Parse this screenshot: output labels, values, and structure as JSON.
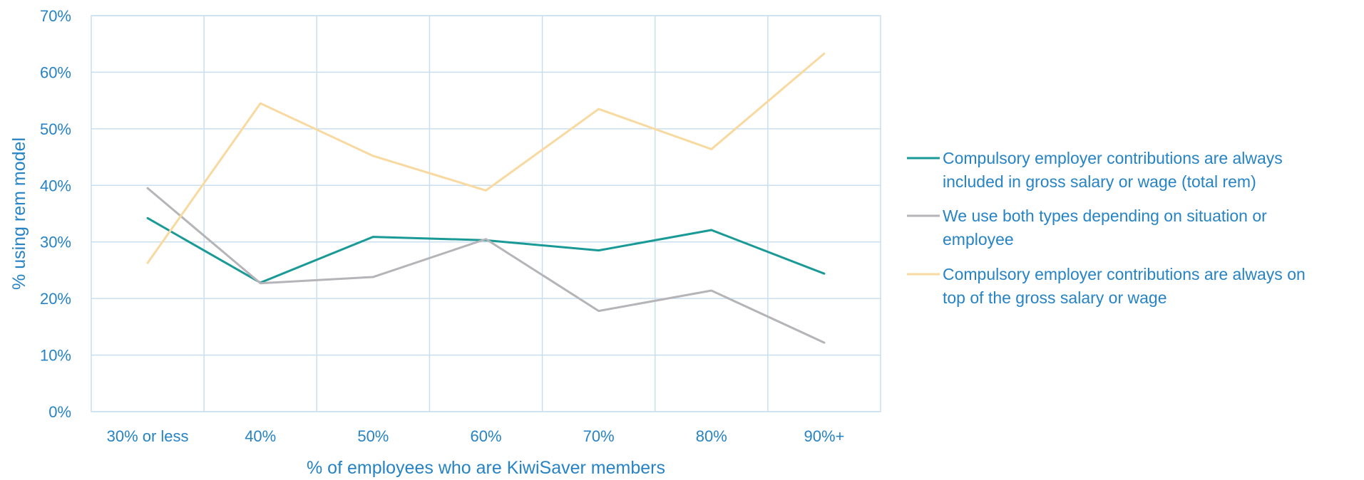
{
  "chart_data": {
    "type": "line",
    "title": "",
    "xlabel": "% of employees who are KiwiSaver members",
    "ylabel": "% using rem model",
    "categories": [
      "30% or less",
      "40%",
      "50%",
      "60%",
      "70%",
      "80%",
      "90%+"
    ],
    "ylim": [
      0,
      70
    ],
    "yticks": [
      0,
      10,
      20,
      30,
      40,
      50,
      60,
      70
    ],
    "ytick_labels": [
      "0%",
      "10%",
      "20%",
      "30%",
      "40%",
      "50%",
      "60%",
      "70%"
    ],
    "grid": true,
    "legend_position": "right",
    "series": [
      {
        "name": "Compulsory employer contributions are always included in gross salary or wage (total rem)",
        "legend_lines": [
          "Compulsory employer contributions are always",
          "included in gross salary or wage (total rem)"
        ],
        "color": "#1a9a96",
        "values": [
          34.2,
          22.8,
          30.9,
          30.3,
          28.5,
          32.1,
          24.4
        ]
      },
      {
        "name": "We use both types depending on situation or employee",
        "legend_lines": [
          "We use both types depending on situation or",
          "employee"
        ],
        "color": "#b5b5b9",
        "values": [
          39.5,
          22.7,
          23.8,
          30.5,
          17.8,
          21.4,
          12.2
        ]
      },
      {
        "name": "Compulsory employer contributions are always on top of the gross salary or wage",
        "legend_lines": [
          "Compulsory employer contributions are always on",
          "top of the gross salary or wage"
        ],
        "color": "#f8d9a0",
        "values": [
          26.3,
          54.5,
          45.2,
          39.1,
          53.5,
          46.4,
          63.3
        ]
      }
    ]
  }
}
